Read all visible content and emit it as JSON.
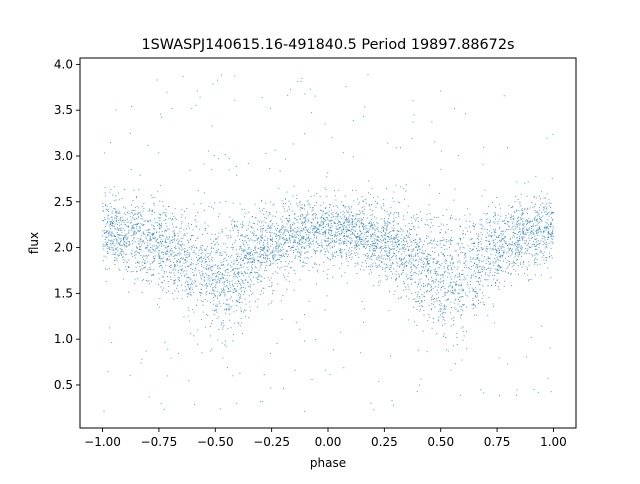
{
  "chart_data": {
    "type": "scatter",
    "title": "1SWASPJ140615.16-491840.5 Period 19897.88672s",
    "xlabel": "phase",
    "ylabel": "flux",
    "xlim": [
      -1.1,
      1.1
    ],
    "ylim": [
      0.03,
      4.07
    ],
    "x_ticks": [
      -1.0,
      -0.75,
      -0.5,
      -0.25,
      0.0,
      0.25,
      0.5,
      0.75,
      1.0
    ],
    "x_tick_labels": [
      "−1.00",
      "−0.75",
      "−0.50",
      "−0.25",
      "0.00",
      "0.25",
      "0.50",
      "0.75",
      "1.00"
    ],
    "y_ticks": [
      0.5,
      1.0,
      1.5,
      2.0,
      2.5,
      3.0,
      3.5,
      4.0
    ],
    "y_tick_labels": [
      "0.5",
      "1.0",
      "1.5",
      "2.0",
      "2.5",
      "3.0",
      "3.5",
      "4.0"
    ],
    "grid": false,
    "legend": "none",
    "marker_color": "#1f77b4",
    "series": [
      {
        "phase_range": [
          -1.0,
          1.0
        ],
        "point_count_approx": 20000,
        "trend_x": [
          -1.0,
          -0.9,
          -0.8,
          -0.7,
          -0.6,
          -0.5,
          -0.45,
          -0.4,
          -0.3,
          -0.2,
          -0.1,
          0.0,
          0.1,
          0.2,
          0.3,
          0.4,
          0.5,
          0.55,
          0.6,
          0.7,
          0.8,
          0.9,
          1.0
        ],
        "trend_flux": [
          2.2,
          2.15,
          2.08,
          1.98,
          1.82,
          1.7,
          1.68,
          1.75,
          1.95,
          2.1,
          2.17,
          2.2,
          2.17,
          2.12,
          2.0,
          1.82,
          1.7,
          1.68,
          1.72,
          1.92,
          2.08,
          2.15,
          2.2
        ],
        "core_spread": 0.18,
        "outlier_range": [
          0.2,
          3.9
        ]
      }
    ]
  }
}
